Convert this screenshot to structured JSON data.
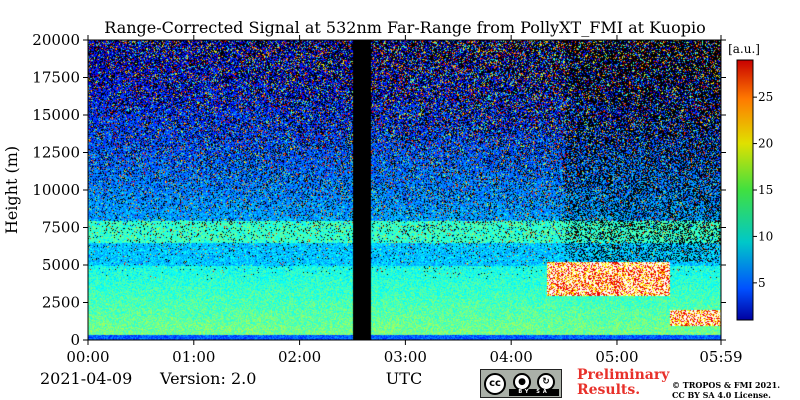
{
  "chart_data": {
    "type": "heatmap",
    "title": "Range-Corrected Signal at 532nm Far-Range from PollyXT_FMI at Kuopio",
    "xlabel": "UTC",
    "ylabel": "Height (m)",
    "xlim": [
      "00:00",
      "05:59"
    ],
    "ylim": [
      0,
      20000
    ],
    "x_ticks": [
      "00:00",
      "01:00",
      "02:00",
      "03:00",
      "04:00",
      "05:00",
      "05:59"
    ],
    "y_ticks": [
      0,
      2500,
      5000,
      7500,
      10000,
      12500,
      15000,
      17500,
      20000
    ],
    "colorbar": {
      "label": "[a.u.]",
      "range": [
        1,
        29
      ],
      "ticks": [
        5,
        10,
        15,
        20,
        25
      ],
      "colormap": "jet"
    },
    "no_data_intervals": [
      [
        "02:30",
        "02:40"
      ]
    ],
    "features": {
      "surface_layer_top_m": 400,
      "boundary_layer_top_m": 5000,
      "elevated_aerosol_layer_m": [
        6500,
        8000
      ],
      "clouds": [
        {
          "start": "04:20",
          "end": "05:30",
          "base_m": 3000,
          "top_m": 5200
        },
        {
          "start": "05:30",
          "end": "05:59",
          "base_m": 1000,
          "top_m": 2000
        }
      ]
    }
  },
  "footer": {
    "date": "2021-04-09",
    "version": "Version: 2.0",
    "preliminary_line1": "Preliminary",
    "preliminary_line2": "Results.",
    "copyright_line1": "© TROPOS & FMI 2021.",
    "copyright_line2": "CC BY SA 4.0 License.",
    "badge_cc": "cc",
    "badge_strip": "BY SA",
    "badge_icons": [
      "person-icon",
      "share-alike-icon"
    ]
  }
}
